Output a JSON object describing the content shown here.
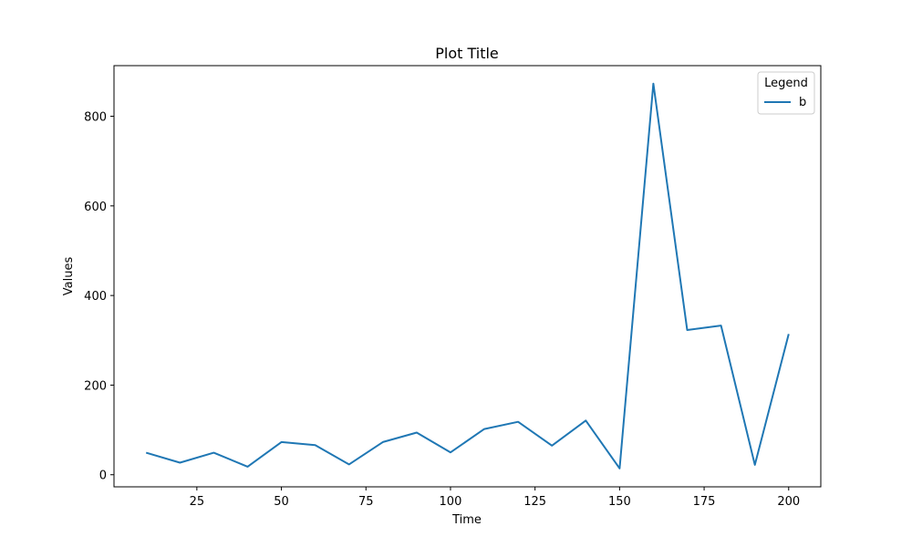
{
  "chart_data": {
    "type": "line",
    "title": "Plot Title",
    "xlabel": "Time",
    "ylabel": "Values",
    "xlim": [
      0.5,
      209.5
    ],
    "ylim": [
      -27,
      913
    ],
    "xticks": [
      25,
      50,
      75,
      100,
      125,
      150,
      175,
      200
    ],
    "yticks": [
      0,
      200,
      400,
      600,
      800
    ],
    "legend": {
      "title": "Legend",
      "placement": "top-right"
    },
    "grid": false,
    "series": [
      {
        "name": "b",
        "color": "#1f77b4",
        "x": [
          10,
          20,
          30,
          40,
          50,
          60,
          70,
          80,
          90,
          100,
          110,
          120,
          130,
          140,
          150,
          160,
          170,
          180,
          190,
          200
        ],
        "y": [
          49,
          27,
          49,
          18,
          73,
          66,
          23,
          73,
          94,
          50,
          102,
          118,
          65,
          121,
          14,
          873,
          323,
          333,
          22,
          314
        ]
      }
    ]
  }
}
